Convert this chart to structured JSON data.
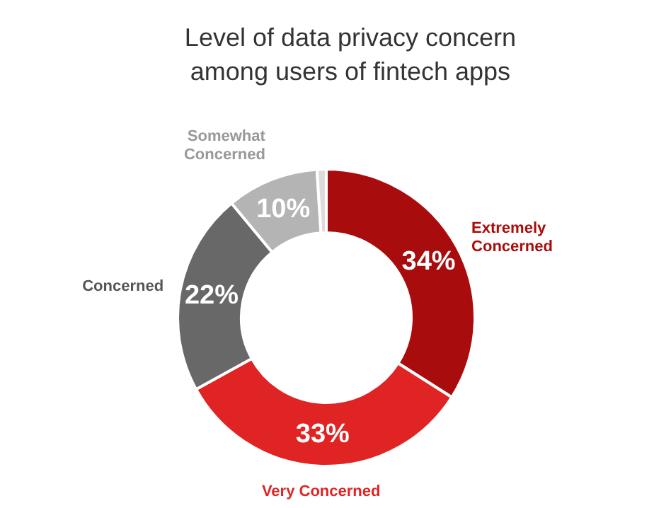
{
  "chart_data": {
    "type": "donut",
    "title": "Level of data privacy concern among users of fintech apps",
    "categories": [
      "Extremely Concerned",
      "Very Concerned",
      "Concerned",
      "Somewhat Concerned",
      null
    ],
    "values": [
      34,
      33,
      22,
      10,
      1
    ],
    "value_labels": [
      "34%",
      "33%",
      "22%",
      "10%",
      null
    ],
    "colors": [
      "#a80c0c",
      "#e02424",
      "#686868",
      "#b4b4b4",
      "#dcdcdc"
    ]
  }
}
